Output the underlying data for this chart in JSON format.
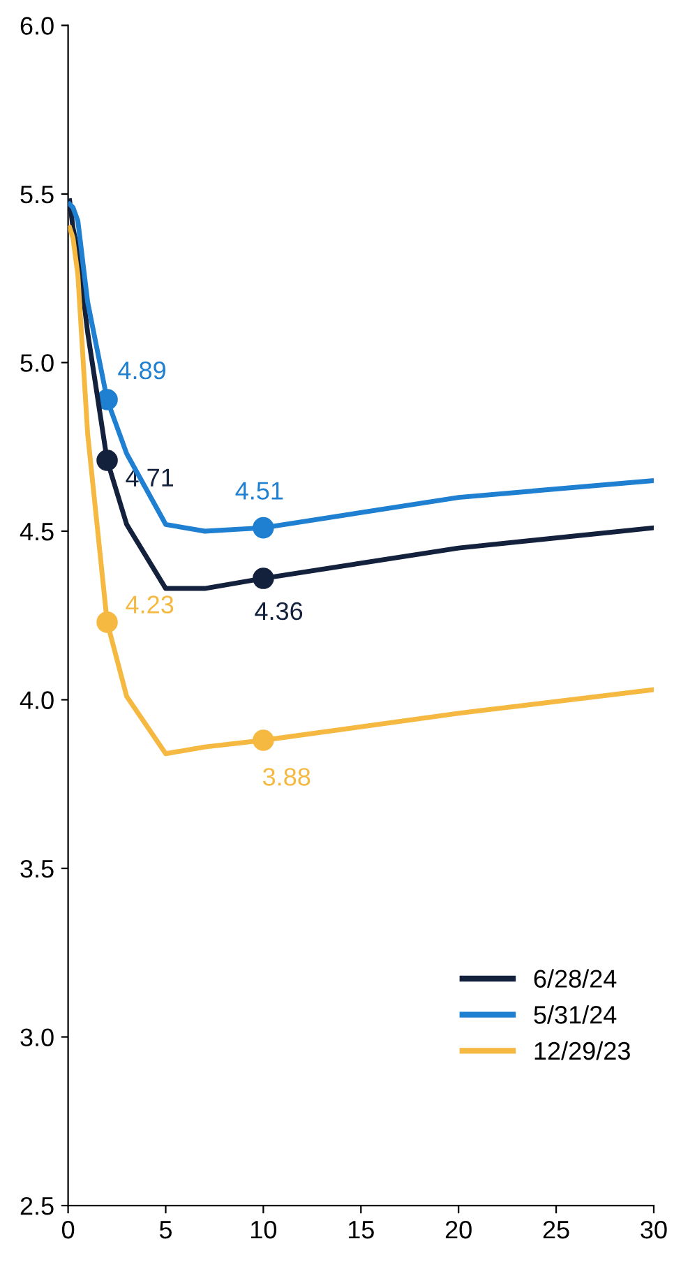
{
  "chart_data": {
    "type": "line",
    "xlim": [
      0,
      30
    ],
    "xticks": [
      0,
      5,
      10,
      15,
      20,
      25,
      30
    ],
    "ylim": [
      2.5,
      6.0
    ],
    "yticks": [
      {
        "value": 2.5,
        "label": "2.5"
      },
      {
        "value": 3.0,
        "label": "3.0"
      },
      {
        "value": 3.5,
        "label": "3.5"
      },
      {
        "value": 4.0,
        "label": "4.0"
      },
      {
        "value": 4.5,
        "label": "4.5"
      },
      {
        "value": 5.0,
        "label": "5.0"
      },
      {
        "value": 5.5,
        "label": "5.5"
      },
      {
        "value": 6.0,
        "label": "6.0"
      }
    ],
    "grid": false,
    "legend": "bottom right",
    "marker": "none",
    "line_style": "solid",
    "series": [
      {
        "name": "6/28/24",
        "color": "#14213d",
        "x": [
          0.08,
          0.25,
          0.5,
          1,
          2,
          3,
          5,
          7,
          10,
          20,
          30
        ],
        "values": [
          5.48,
          5.4,
          5.33,
          5.09,
          4.71,
          4.52,
          4.33,
          4.33,
          4.36,
          4.45,
          4.51
        ]
      },
      {
        "name": "5/31/24",
        "color": "#1f7fd0",
        "x": [
          0.08,
          0.25,
          0.5,
          1,
          2,
          3,
          5,
          7,
          10,
          20,
          30
        ],
        "values": [
          5.47,
          5.46,
          5.42,
          5.18,
          4.89,
          4.73,
          4.52,
          4.5,
          4.51,
          4.6,
          4.65
        ]
      },
      {
        "name": "12/29/23",
        "color": "#f5b942",
        "x": [
          0.08,
          0.25,
          0.5,
          1,
          2,
          3,
          5,
          7,
          10,
          20,
          30
        ],
        "values": [
          5.4,
          5.37,
          5.26,
          4.79,
          4.23,
          4.01,
          3.84,
          3.86,
          3.88,
          3.96,
          4.03
        ]
      },
      {
        "type": "scatter",
        "marker": "circle",
        "color": "#14213d",
        "x": [
          2,
          10
        ],
        "values": [
          4.71,
          4.36
        ],
        "value_labels": [
          "4.71",
          "4.36"
        ]
      },
      {
        "type": "scatter",
        "marker": "circle",
        "color": "#1f7fd0",
        "x": [
          2,
          10
        ],
        "values": [
          4.89,
          4.51
        ],
        "value_labels": [
          "4.89",
          "4.51"
        ]
      },
      {
        "type": "scatter",
        "marker": "circle",
        "color": "#f5b942",
        "x": [
          2,
          10
        ],
        "values": [
          4.23,
          3.88
        ],
        "value_labels": [
          "4.23",
          "3.88"
        ]
      }
    ]
  }
}
